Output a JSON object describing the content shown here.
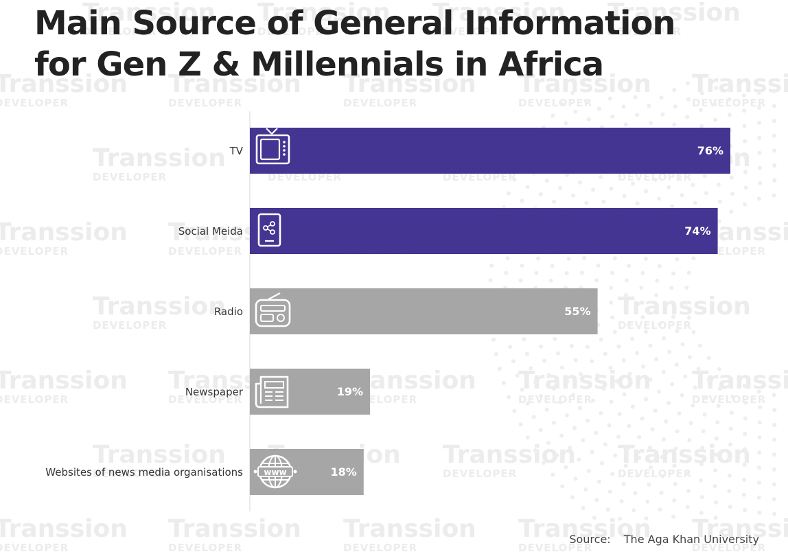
{
  "watermark": {
    "line1": "Transsion",
    "line2": "DEVELOPER"
  },
  "chart_data": {
    "type": "bar",
    "orientation": "horizontal",
    "title": "Main Source of General Information for Gen Z & Millennials in Africa",
    "title_lines": [
      "Main Source of General Information",
      "for Gen Z & Millennials in Africa"
    ],
    "categories": [
      "TV",
      "Social Meida",
      "Radio",
      "Newspaper",
      "Websites of news media organisations"
    ],
    "values": [
      76,
      74,
      55,
      19,
      18
    ],
    "value_labels": [
      "76%",
      "74%",
      "55%",
      "19%",
      "18%"
    ],
    "icons": [
      "tv-icon",
      "smartphone-share-icon",
      "radio-icon",
      "newspaper-icon",
      "globe-www-icon"
    ],
    "colors": [
      "#433591",
      "#433591",
      "#a6a6a6",
      "#a6a6a6",
      "#a6a6a6"
    ],
    "xlim": [
      0,
      76
    ],
    "grid": false,
    "legend": "none"
  },
  "source": {
    "label": "Source:",
    "text": "The Aga Khan University"
  }
}
